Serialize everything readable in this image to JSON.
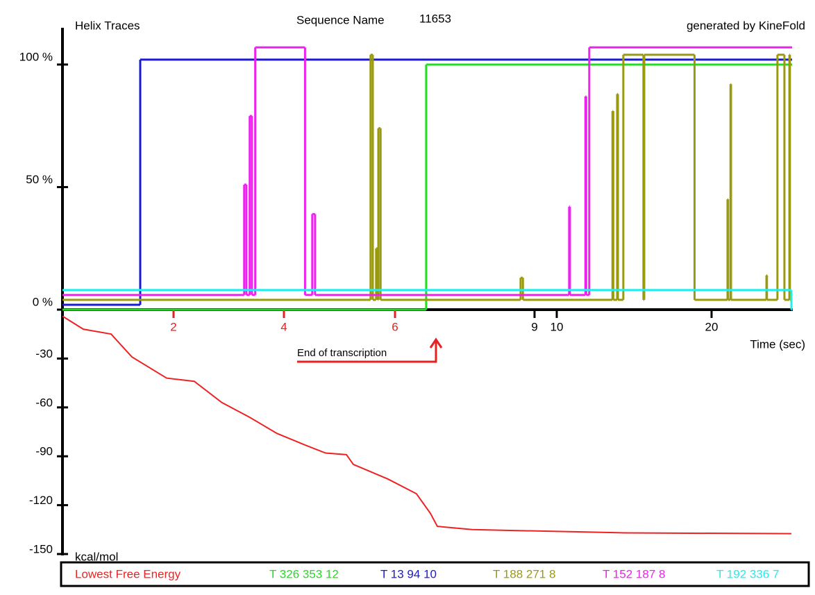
{
  "chart_data": [
    {
      "type": "step",
      "title": "Helix Traces",
      "subtitle": "Sequence Name",
      "sequence": "11653",
      "credit": "generated by KineFold",
      "x_label": "Time (sec)",
      "annotation": "End of transcription",
      "xlim": [
        0,
        28
      ],
      "xticks": [
        2,
        4,
        6,
        9,
        10,
        20
      ],
      "xtick_colors": [
        "#e82020",
        "#e82020",
        "#e82020",
        "#000000",
        "#000000",
        "#000000"
      ],
      "ylim": [
        0,
        115
      ],
      "yticks": [
        {
          "value": 0,
          "label": "0 %"
        },
        {
          "value": 50,
          "label": "50 %"
        },
        {
          "value": 100,
          "label": "100 %"
        }
      ],
      "series": [
        {
          "name": "T 326 353 12",
          "color": "#22dd22",
          "x": [
            0,
            6.67,
            28
          ],
          "values": [
            0,
            100,
            100
          ]
        },
        {
          "name": "T 13 94 10",
          "color": "#1a1ad0",
          "x": [
            0,
            1.4,
            28
          ],
          "values": [
            2,
            102,
            102
          ]
        },
        {
          "name": "T 188 271 8",
          "color": "#9a9a10",
          "x": [
            0,
            5.56,
            5.6,
            5.66,
            5.69,
            5.7,
            5.74,
            8.7,
            8.75,
            13.6,
            13.65,
            13.9,
            13.95,
            14.3,
            15.6,
            15.65,
            18.9,
            21.6,
            21.65,
            21.9,
            21.95,
            25.5,
            25.55,
            26.6,
            27.3,
            27.8,
            27.85
          ],
          "values": [
            4,
            104,
            4,
            25,
            4,
            74,
            4,
            13,
            4,
            81,
            4,
            88,
            4,
            104,
            4,
            104,
            4,
            45,
            4,
            92,
            4,
            14,
            4,
            104,
            4,
            104,
            4
          ]
        },
        {
          "name": "T 152 187 8",
          "color": "#ee22ee",
          "x": [
            0,
            3.28,
            3.32,
            3.38,
            3.42,
            3.48,
            4.38,
            4.51,
            4.56,
            10.8,
            10.85,
            11.85,
            11.9,
            12.1,
            28
          ],
          "values": [
            6,
            51,
            6,
            79,
            6,
            107,
            6,
            39,
            6,
            42,
            6,
            87,
            6,
            107,
            107
          ]
        },
        {
          "name": "T 192 336 7",
          "color": "#22eeee",
          "x": [
            0,
            28
          ],
          "values": [
            8,
            0
          ]
        }
      ]
    },
    {
      "type": "line",
      "y_label": "kcal/mol",
      "xlim": [
        0,
        28
      ],
      "ylim": [
        -150,
        0
      ],
      "yticks": [
        -150,
        -120,
        -90,
        -60,
        -30
      ],
      "series": [
        {
          "name": "Lowest Free Energy",
          "color": "#ee2222",
          "x": [
            0,
            0.375,
            0.875,
            1.25,
            1.875,
            2.375,
            2.875,
            3.375,
            3.875,
            4.375,
            4.75,
            5.125,
            5.25,
            5.875,
            6.46,
            6.76,
            6.91,
            7.66,
            14.4,
            28
          ],
          "values": [
            -4,
            -12,
            -15,
            -29,
            -42,
            -44,
            -57,
            -66,
            -76,
            -83,
            -88,
            -89,
            -95,
            -104,
            -113,
            -125,
            -133,
            -135,
            -137,
            -137.5
          ]
        }
      ]
    }
  ]
}
